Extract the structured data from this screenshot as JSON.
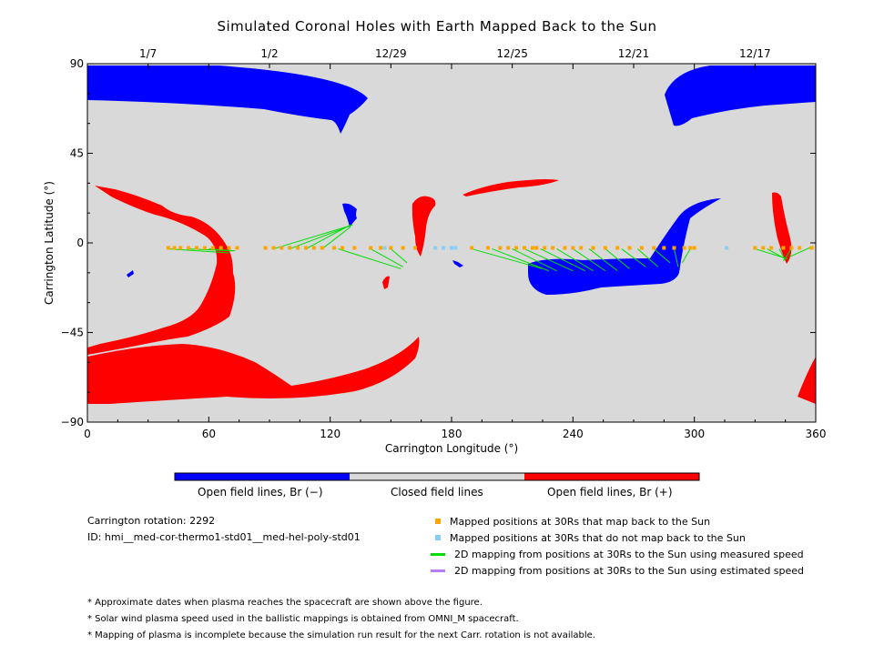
{
  "chart_data": {
    "type": "scatter",
    "title": "Simulated Coronal Holes with Earth Mapped Back to the Sun",
    "xlabel": "Carrington Longitude (°)",
    "ylabel": "Carrington Latitude (°)",
    "xlim": [
      0,
      360
    ],
    "ylim": [
      -90,
      90
    ],
    "x_ticks": [
      "0",
      "60",
      "120",
      "180",
      "240",
      "300",
      "360"
    ],
    "y_ticks": [
      "90",
      "45",
      "0",
      "−45",
      "−90"
    ],
    "top_axis_dates": [
      {
        "lon": 30,
        "label": "1/7"
      },
      {
        "lon": 90,
        "label": "1/2"
      },
      {
        "lon": 150,
        "label": "12/29"
      },
      {
        "lon": 210,
        "label": "12/25"
      },
      {
        "lon": 270,
        "label": "12/21"
      },
      {
        "lon": 330,
        "label": "12/17"
      }
    ],
    "grid": false,
    "colors": {
      "background": "#d9d9d9",
      "open_negative": "#0000ff",
      "open_positive": "#ff0000",
      "mapped": "#ffa500",
      "unmapped": "#87cefa",
      "measured_line": "#00dd00",
      "estimated_line": "#b77cff"
    },
    "mapped_positions_lon": [
      40,
      43,
      46,
      50,
      54,
      58,
      62,
      66,
      70,
      74,
      88,
      92,
      96,
      100,
      104,
      108,
      112,
      116,
      122,
      126,
      132,
      140,
      145,
      150,
      156,
      162,
      190,
      198,
      204,
      208,
      212,
      216,
      220,
      222,
      226,
      230,
      236,
      240,
      244,
      250,
      256,
      262,
      268,
      274,
      280,
      285,
      290,
      295,
      298,
      300,
      330,
      334,
      338,
      344,
      348,
      352,
      358
    ],
    "unmapped_positions_lon": [
      147,
      172,
      176,
      180,
      182,
      316
    ],
    "mapping_lines": [
      {
        "from": [
          40,
          -3
        ],
        "to": [
          70,
          -5
        ]
      },
      {
        "from": [
          50,
          -3
        ],
        "to": [
          72,
          -4
        ]
      },
      {
        "from": [
          60,
          -3
        ],
        "to": [
          73,
          -4
        ]
      },
      {
        "from": [
          92,
          -3
        ],
        "to": [
          131,
          9
        ]
      },
      {
        "from": [
          100,
          -3
        ],
        "to": [
          131,
          9
        ]
      },
      {
        "from": [
          108,
          -3
        ],
        "to": [
          130,
          9
        ]
      },
      {
        "from": [
          116,
          -3
        ],
        "to": [
          130,
          8
        ]
      },
      {
        "from": [
          124,
          -3
        ],
        "to": [
          155,
          -13
        ]
      },
      {
        "from": [
          140,
          -3
        ],
        "to": [
          156,
          -12
        ]
      },
      {
        "from": [
          150,
          -3
        ],
        "to": [
          158,
          -10
        ]
      },
      {
        "from": [
          190,
          -3
        ],
        "to": [
          225,
          -13
        ]
      },
      {
        "from": [
          200,
          -3
        ],
        "to": [
          228,
          -14
        ]
      },
      {
        "from": [
          210,
          -3
        ],
        "to": [
          232,
          -14
        ]
      },
      {
        "from": [
          216,
          -3
        ],
        "to": [
          240,
          -14
        ]
      },
      {
        "from": [
          224,
          -3
        ],
        "to": [
          246,
          -14
        ]
      },
      {
        "from": [
          232,
          -3
        ],
        "to": [
          250,
          -14
        ]
      },
      {
        "from": [
          240,
          -3
        ],
        "to": [
          256,
          -14
        ]
      },
      {
        "from": [
          248,
          -3
        ],
        "to": [
          262,
          -14
        ]
      },
      {
        "from": [
          256,
          -3
        ],
        "to": [
          268,
          -13
        ]
      },
      {
        "from": [
          264,
          -3
        ],
        "to": [
          276,
          -12
        ]
      },
      {
        "from": [
          272,
          -3
        ],
        "to": [
          282,
          -12
        ]
      },
      {
        "from": [
          280,
          -3
        ],
        "to": [
          288,
          -10
        ]
      },
      {
        "from": [
          290,
          -3
        ],
        "to": [
          292,
          -12
        ]
      },
      {
        "from": [
          298,
          -3
        ],
        "to": [
          294,
          -10
        ]
      },
      {
        "from": [
          330,
          -3
        ],
        "to": [
          346,
          -8
        ]
      },
      {
        "from": [
          336,
          -3
        ],
        "to": [
          345,
          -8
        ]
      },
      {
        "from": [
          342,
          -3
        ],
        "to": [
          345,
          -9
        ]
      },
      {
        "from": [
          348,
          -3
        ],
        "to": [
          344,
          -9
        ]
      },
      {
        "from": [
          358,
          -2
        ],
        "to": [
          347,
          -7
        ]
      }
    ]
  },
  "colorbar": {
    "labels": [
      "Open field lines, Br (−)",
      "Closed field lines",
      "Open field lines, Br (+)"
    ]
  },
  "info": {
    "rotation": "Carrington rotation: 2292",
    "id": "ID: hmi__med-cor-thermo1-std01__med-hel-poly-std01"
  },
  "legend": {
    "items": [
      {
        "label": "Mapped positions at 30Rs that map back to the Sun",
        "color": "#ffa500",
        "kind": "square"
      },
      {
        "label": "Mapped positions at 30Rs that do not map back to the Sun",
        "color": "#87cefa",
        "kind": "square"
      },
      {
        "label": "2D mapping from positions at 30Rs to the Sun using measured speed",
        "color": "#00dd00",
        "kind": "line"
      },
      {
        "label": "2D mapping from positions at 30Rs to the Sun using estimated speed",
        "color": "#b77cff",
        "kind": "line"
      }
    ]
  },
  "notes": [
    "* Approximate dates when plasma reaches the spacecraft are shown above the figure.",
    "* Solar wind plasma speed used in the ballistic mappings is obtained from OMNI_M spacecraft.",
    "* Mapping of plasma is incomplete because the simulation run result for the next Carr. rotation is not available."
  ]
}
